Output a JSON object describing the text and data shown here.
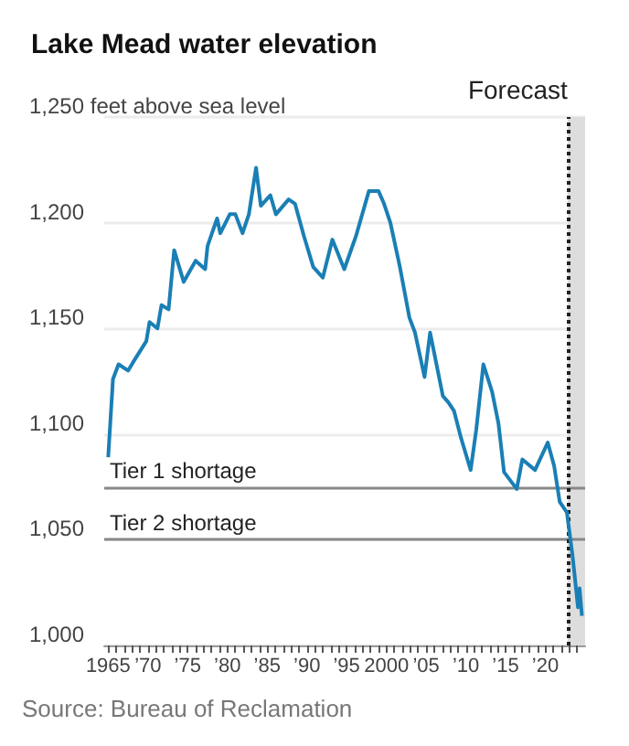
{
  "chart_data": {
    "type": "line",
    "title": "Lake Mead water elevation",
    "annotations": [
      "Source: Bureau of Reclamation"
    ],
    "x": [
      1965.0,
      1965.6,
      1966.3,
      1967.5,
      1968.3,
      1969.8,
      1970.2,
      1971.2,
      1971.7,
      1972.6,
      1973.3,
      1974.5,
      1976.0,
      1977.2,
      1977.5,
      1978.7,
      1979.1,
      1980.3,
      1981.0,
      1981.9,
      1982.7,
      1983.6,
      1984.2,
      1985.4,
      1986.1,
      1987.7,
      1988.5,
      1989.6,
      1990.8,
      1992.0,
      1993.2,
      1994.7,
      1996.2,
      1997.8,
      1999.0,
      1999.7,
      2000.5,
      2001.7,
      2002.9,
      2003.6,
      2004.8,
      2005.5,
      2007.1,
      2007.8,
      2008.5,
      2009.4,
      2010.6,
      2011.3,
      2012.2,
      2013.3,
      2014.1,
      2014.8,
      2016.4,
      2017.1,
      2018.7,
      2020.3,
      2021.1,
      2021.8,
      2022.7,
      2023.4,
      2023.8,
      2024.1,
      2024.3,
      2024.6
    ],
    "series": [
      {
        "color": "#1a7fb5",
        "values": [
          1089,
          1126,
          1133,
          1130,
          1135,
          1144,
          1153,
          1150,
          1161,
          1159,
          1187,
          1172,
          1182,
          1178,
          1189,
          1202,
          1195,
          1204,
          1204,
          1195,
          1204,
          1226,
          1208,
          1213,
          1204,
          1211,
          1209,
          1194,
          1179,
          1174,
          1192,
          1178,
          1194,
          1215,
          1215,
          1209,
          1200,
          1179,
          1155,
          1148,
          1127,
          1148,
          1118,
          1115,
          1111,
          1098,
          1083,
          1102,
          1133,
          1120,
          1105,
          1082,
          1074,
          1088,
          1083,
          1096,
          1085,
          1068,
          1063,
          1043,
          1029,
          1018,
          1027,
          1014
        ]
      }
    ],
    "xlim": [
      1964.5,
      2025
    ],
    "xticks": [
      {
        "value": 1965,
        "label": "1965"
      },
      {
        "value": 1966,
        "label": null
      },
      {
        "value": 1967,
        "label": null
      },
      {
        "value": 1968,
        "label": null
      },
      {
        "value": 1969,
        "label": null
      },
      {
        "value": 1970,
        "label": "’70"
      },
      {
        "value": 1971,
        "label": null
      },
      {
        "value": 1972,
        "label": null
      },
      {
        "value": 1973,
        "label": null
      },
      {
        "value": 1974,
        "label": null
      },
      {
        "value": 1975,
        "label": "’75"
      },
      {
        "value": 1976,
        "label": null
      },
      {
        "value": 1977,
        "label": null
      },
      {
        "value": 1978,
        "label": null
      },
      {
        "value": 1979,
        "label": null
      },
      {
        "value": 1980,
        "label": "’80"
      },
      {
        "value": 1981,
        "label": null
      },
      {
        "value": 1982,
        "label": null
      },
      {
        "value": 1983,
        "label": null
      },
      {
        "value": 1984,
        "label": null
      },
      {
        "value": 1985,
        "label": "’85"
      },
      {
        "value": 1986,
        "label": null
      },
      {
        "value": 1987,
        "label": null
      },
      {
        "value": 1988,
        "label": null
      },
      {
        "value": 1989,
        "label": null
      },
      {
        "value": 1990,
        "label": "’90"
      },
      {
        "value": 1991,
        "label": null
      },
      {
        "value": 1992,
        "label": null
      },
      {
        "value": 1993,
        "label": null
      },
      {
        "value": 1994,
        "label": null
      },
      {
        "value": 1995,
        "label": "’95"
      },
      {
        "value": 1996,
        "label": null
      },
      {
        "value": 1997,
        "label": null
      },
      {
        "value": 1998,
        "label": null
      },
      {
        "value": 1999,
        "label": null
      },
      {
        "value": 2000,
        "label": "2000"
      },
      {
        "value": 2001,
        "label": null
      },
      {
        "value": 2002,
        "label": null
      },
      {
        "value": 2003,
        "label": null
      },
      {
        "value": 2004,
        "label": null
      },
      {
        "value": 2005,
        "label": "’05"
      },
      {
        "value": 2006,
        "label": null
      },
      {
        "value": 2007,
        "label": null
      },
      {
        "value": 2008,
        "label": null
      },
      {
        "value": 2009,
        "label": null
      },
      {
        "value": 2010,
        "label": "’10"
      },
      {
        "value": 2011,
        "label": null
      },
      {
        "value": 2012,
        "label": null
      },
      {
        "value": 2013,
        "label": null
      },
      {
        "value": 2014,
        "label": null
      },
      {
        "value": 2015,
        "label": "’15"
      },
      {
        "value": 2016,
        "label": null
      },
      {
        "value": 2017,
        "label": null
      },
      {
        "value": 2018,
        "label": null
      },
      {
        "value": 2019,
        "label": null
      },
      {
        "value": 2020,
        "label": "’20"
      },
      {
        "value": 2021,
        "label": null
      },
      {
        "value": 2022,
        "label": null
      },
      {
        "value": 2023,
        "label": null
      },
      {
        "value": 2024,
        "label": null
      }
    ],
    "ylim": [
      1000,
      1250
    ],
    "yticks": [
      {
        "value": 1000,
        "label": "1,000"
      },
      {
        "value": 1050,
        "label": "1,050"
      },
      {
        "value": 1100,
        "label": "1,100"
      },
      {
        "value": 1150,
        "label": "1,150"
      },
      {
        "value": 1200,
        "label": "1,200"
      },
      {
        "value": 1250,
        "label": "1,250 feet above sea level"
      }
    ],
    "ref_lines": [
      {
        "axis": "y",
        "value": 1075,
        "label": "Tier 1 shortage",
        "color": "#888888",
        "line_style": "solid"
      },
      {
        "axis": "y",
        "value": 1050,
        "label": "Tier 2 shortage",
        "color": "#888888",
        "line_style": "solid"
      },
      {
        "axis": "x",
        "value": 2022.8,
        "label": "Forecast",
        "color": "#222222",
        "line_style": "dotted"
      }
    ],
    "bands": [
      {
        "axis": "x",
        "from": 2022.8,
        "to": 2025,
        "color": "#dddddd"
      }
    ],
    "grid": "y",
    "marker": "none",
    "line_style": "solid"
  }
}
